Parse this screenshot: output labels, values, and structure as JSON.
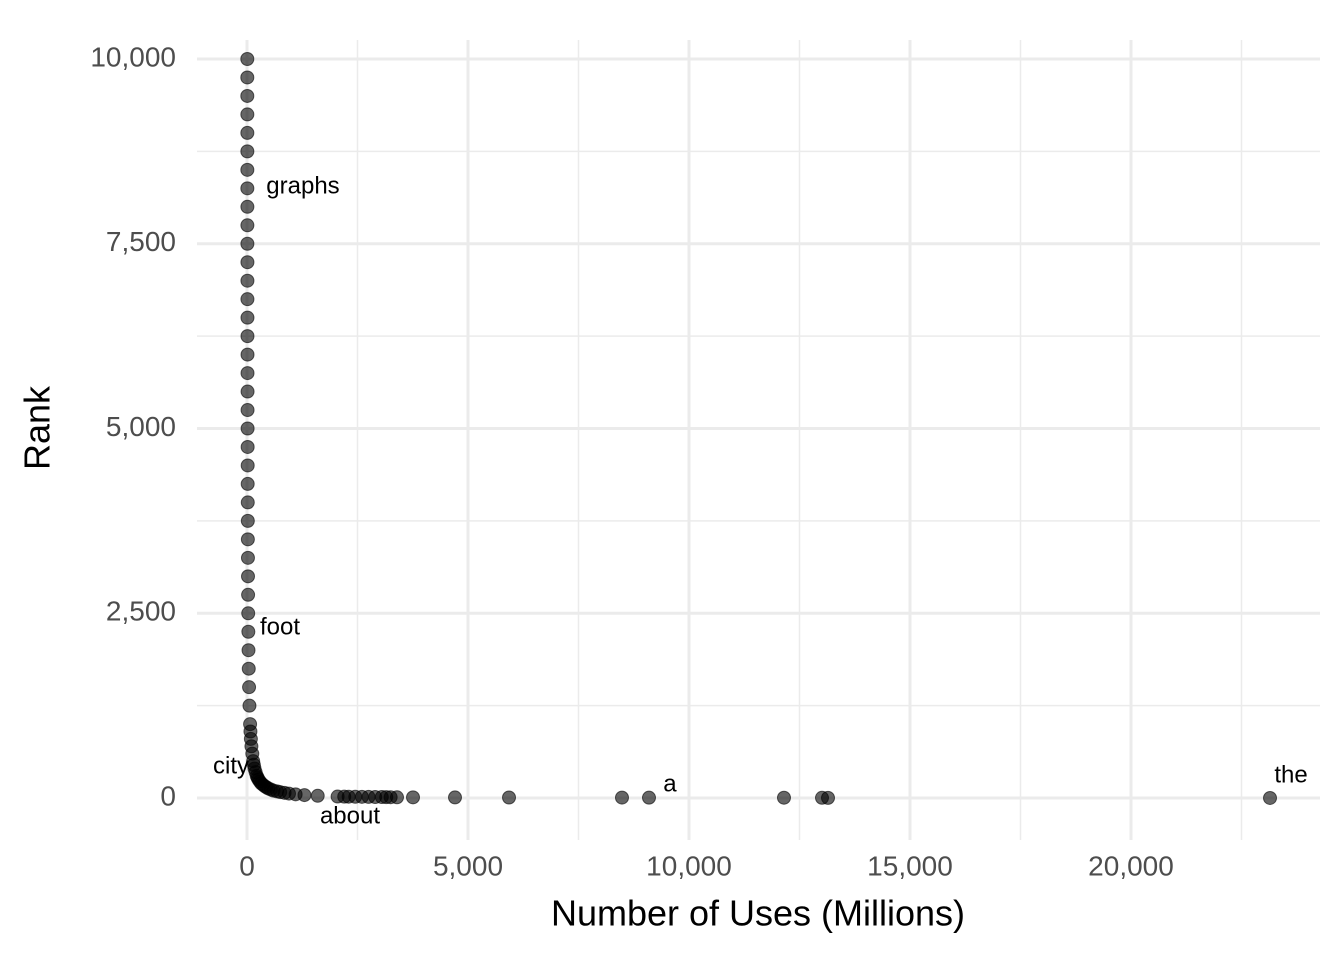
{
  "chart_data": {
    "type": "scatter",
    "x_label": "Number of Uses (Millions)",
    "y_label": "Rank",
    "color": "#000000",
    "opacity": 0.6,
    "grid": true,
    "xlim": [
      -1131,
      24276
    ],
    "ylim": [
      -568,
      10257
    ],
    "xticks": [
      0,
      {
        "value": 5000,
        "label": "5,000"
      },
      {
        "value": 10000,
        "label": "10,000"
      },
      {
        "value": 15000,
        "label": "15,000"
      },
      {
        "value": 20000,
        "label": "20,000"
      }
    ],
    "yticks": [
      0,
      {
        "value": 2500,
        "label": "2,500"
      },
      {
        "value": 5000,
        "label": "5,000"
      },
      {
        "value": 7500,
        "label": "7,500"
      },
      {
        "value": 10000,
        "label": "10,000"
      }
    ],
    "minor_xticks": [
      2500,
      7500,
      12500,
      17500,
      22500
    ],
    "minor_yticks": [
      1250,
      3750,
      6250,
      8750
    ],
    "x": [
      23145,
      13145,
      13009,
      12149,
      9095,
      8484,
      5928,
      4706,
      3756,
      3394,
      3250,
      3150,
      3050,
      2900,
      2750,
      2600,
      2450,
      2300,
      2200,
      2050,
      1600,
      1300,
      1100,
      950,
      850,
      750,
      680,
      600,
      540,
      480,
      440,
      400,
      360,
      320,
      290,
      260,
      240,
      220,
      195,
      170,
      155,
      140,
      120,
      100,
      88,
      78,
      70,
      56,
      47,
      40,
      35,
      31,
      28,
      25,
      23,
      22,
      20,
      19,
      18,
      16,
      16,
      15,
      14,
      13,
      13,
      12,
      12,
      11,
      11,
      10,
      10,
      10,
      9,
      9,
      9,
      8,
      8,
      8,
      8,
      8,
      7,
      7,
      7
    ],
    "y": [
      1,
      2,
      3,
      4,
      5,
      6,
      7,
      8,
      9,
      10,
      11,
      12,
      13,
      14,
      15,
      16,
      17,
      18,
      19,
      20,
      30,
      40,
      50,
      60,
      70,
      80,
      90,
      100,
      115,
      130,
      145,
      160,
      180,
      200,
      225,
      250,
      275,
      300,
      350,
      400,
      450,
      500,
      600,
      700,
      800,
      900,
      1000,
      1250,
      1500,
      1750,
      2000,
      2250,
      2500,
      2750,
      3000,
      3250,
      3500,
      3750,
      4000,
      4250,
      4500,
      4750,
      5000,
      5250,
      5500,
      5750,
      6000,
      6250,
      6500,
      6750,
      7000,
      7250,
      7500,
      7750,
      8000,
      8250,
      8500,
      8750,
      9000,
      9250,
      9500,
      9750,
      10000
    ],
    "annotations": [
      {
        "text": "graphs",
        "x": 1267,
        "y": 8268
      },
      {
        "text": "foot",
        "x": 747,
        "y": 2300
      },
      {
        "text": "city",
        "x": -362,
        "y": 420
      },
      {
        "text": "about",
        "x": 2330,
        "y": -257
      },
      {
        "text": "a",
        "x": 9570,
        "y": 176
      },
      {
        "text": "the",
        "x": 23620,
        "y": 298
      }
    ]
  }
}
